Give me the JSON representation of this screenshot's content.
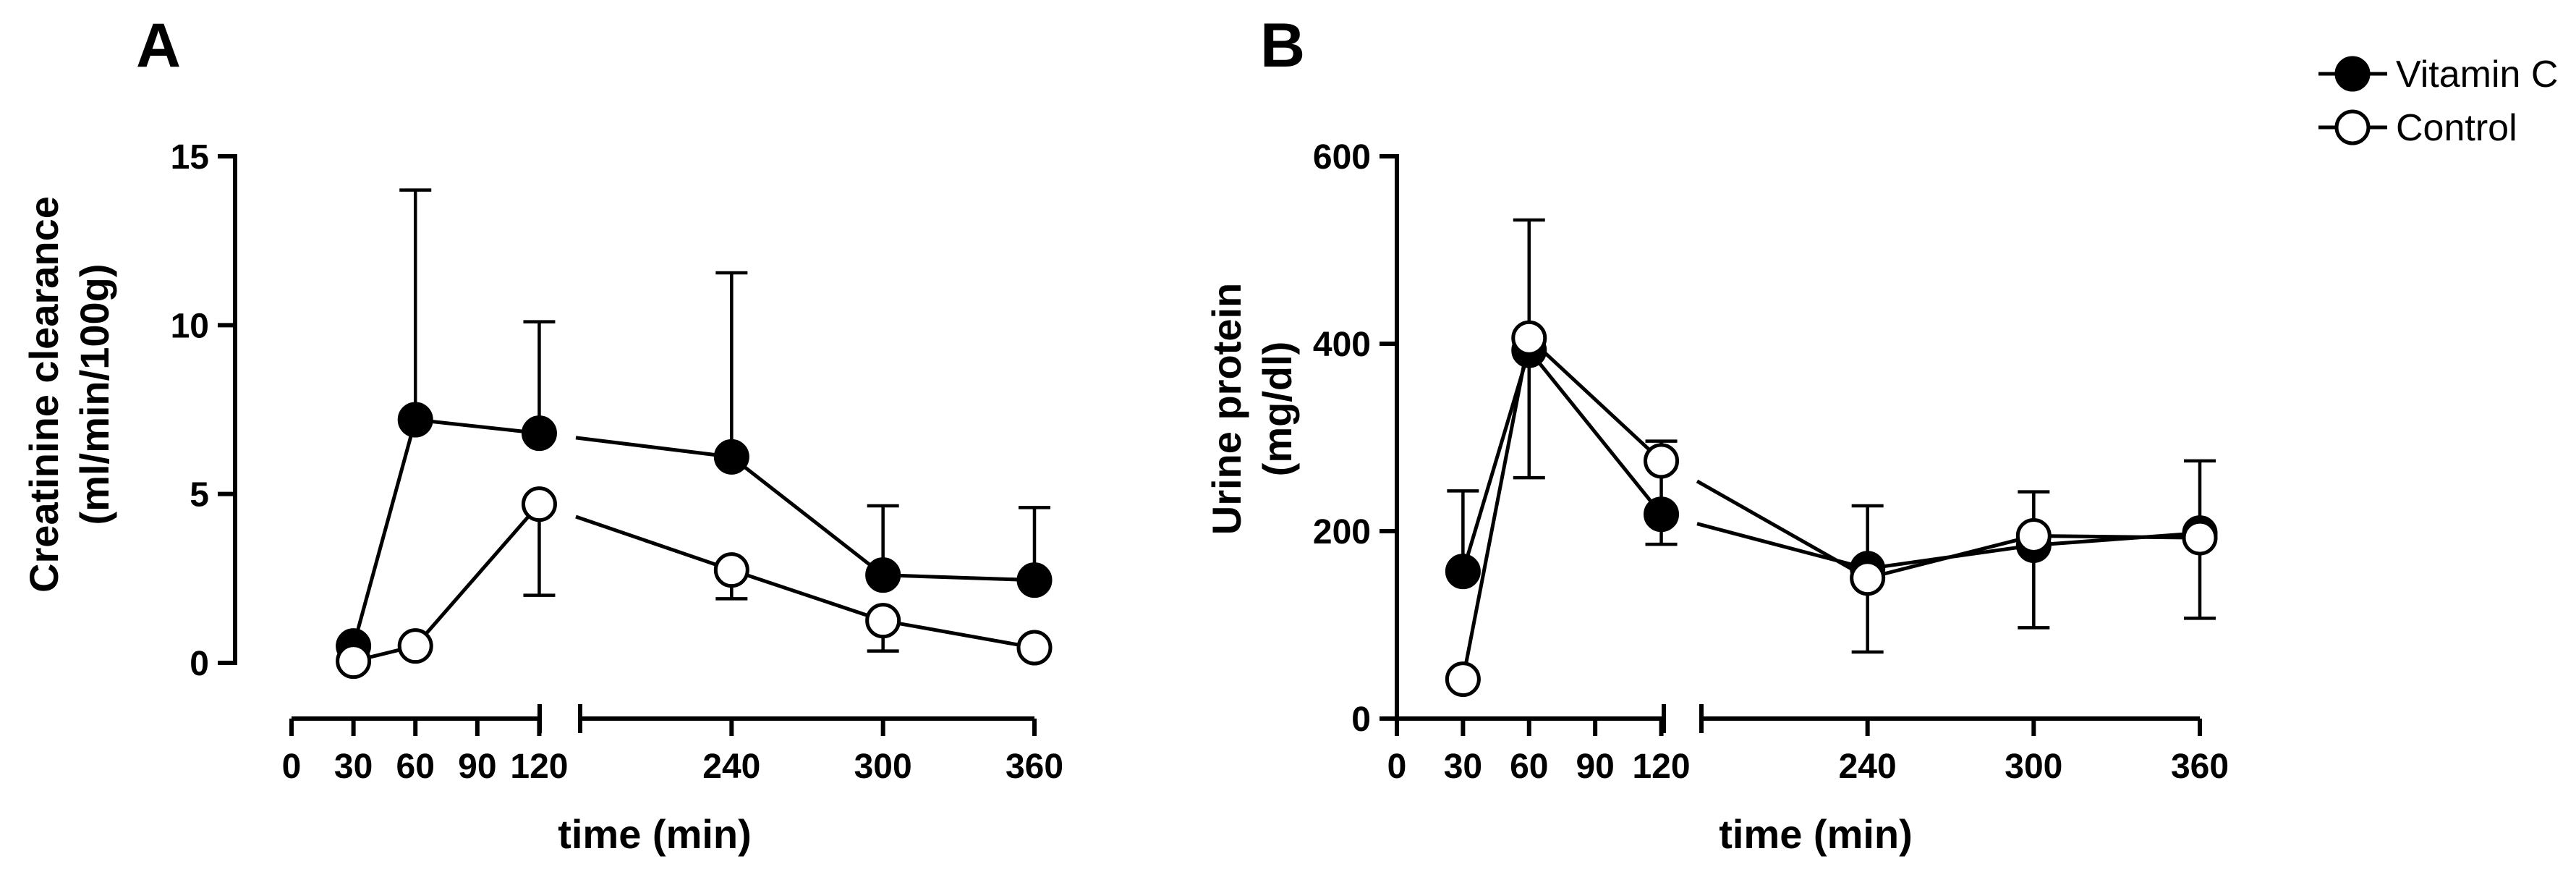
{
  "chart_data": [
    {
      "type": "line",
      "panel": "A",
      "ylabel_line1": "Creatinine clearance",
      "ylabel_line2": "(ml/min/100g)",
      "xlabel": "time (min)",
      "ylim": [
        0,
        15
      ],
      "yticks": [
        "0",
        "5",
        "10",
        "15"
      ],
      "ytick_values": [
        0,
        5,
        10,
        15
      ],
      "x_ticks_left": [
        "0",
        "30",
        "60",
        "90",
        "120"
      ],
      "x_ticks_left_values": [
        0,
        30,
        60,
        90,
        120
      ],
      "x_ticks_right": [
        "240",
        "300",
        "360"
      ],
      "x_ticks_right_values": [
        240,
        300,
        360
      ],
      "x_segment_ranges": [
        [
          0,
          130
        ],
        [
          180,
          360
        ]
      ],
      "series": [
        {
          "name": "Vitamin C",
          "marker": "filled",
          "x": [
            30,
            60,
            120,
            240,
            300,
            360
          ],
          "y": [
            0.5,
            7.2,
            6.8,
            6.1,
            2.6,
            2.45
          ],
          "err_up": [
            0,
            14.0,
            10.1,
            11.55,
            4.65,
            4.6
          ],
          "err_down": [
            null,
            null,
            null,
            null,
            null,
            null
          ]
        },
        {
          "name": "Control",
          "marker": "open",
          "x": [
            30,
            60,
            120,
            240,
            300,
            360
          ],
          "y": [
            0.05,
            0.5,
            4.7,
            2.75,
            1.25,
            0.45
          ],
          "err_up": [
            null,
            null,
            null,
            null,
            null,
            null
          ],
          "err_down": [
            null,
            null,
            2.0,
            1.9,
            0.35,
            null
          ]
        }
      ]
    },
    {
      "type": "line",
      "panel": "B",
      "ylabel_line1": "Urine protein",
      "ylabel_line2": "(mg/dl)",
      "xlabel": "time (min)",
      "ylim": [
        0,
        600
      ],
      "yticks": [
        "0",
        "200",
        "400",
        "600"
      ],
      "ytick_values": [
        0,
        200,
        400,
        600
      ],
      "x_ticks_left": [
        "0",
        "30",
        "60",
        "90",
        "120"
      ],
      "x_ticks_left_values": [
        0,
        30,
        60,
        90,
        120
      ],
      "x_ticks_right": [
        "240",
        "300",
        "360"
      ],
      "x_ticks_right_values": [
        240,
        300,
        360
      ],
      "x_segment_ranges": [
        [
          0,
          130
        ],
        [
          180,
          360
        ]
      ],
      "series": [
        {
          "name": "Vitamin C",
          "marker": "filled",
          "x": [
            30,
            60,
            120,
            240,
            300,
            360
          ],
          "y": [
            157,
            393,
            218,
            160,
            185,
            198
          ],
          "err_up": [
            243,
            532,
            296,
            227,
            242,
            275
          ],
          "err_down": [
            null,
            257,
            186,
            71,
            97,
            107
          ]
        },
        {
          "name": "Control",
          "marker": "open",
          "x": [
            30,
            60,
            120,
            240,
            300,
            360
          ],
          "y": [
            42,
            406,
            275,
            150,
            195,
            193
          ],
          "err_up": [
            null,
            null,
            null,
            null,
            null,
            null
          ],
          "err_down": [
            null,
            null,
            null,
            null,
            null,
            null
          ]
        }
      ]
    }
  ],
  "legend": {
    "items": [
      {
        "label": "Vitamin C",
        "marker": "filled"
      },
      {
        "label": "Control",
        "marker": "open"
      }
    ]
  }
}
